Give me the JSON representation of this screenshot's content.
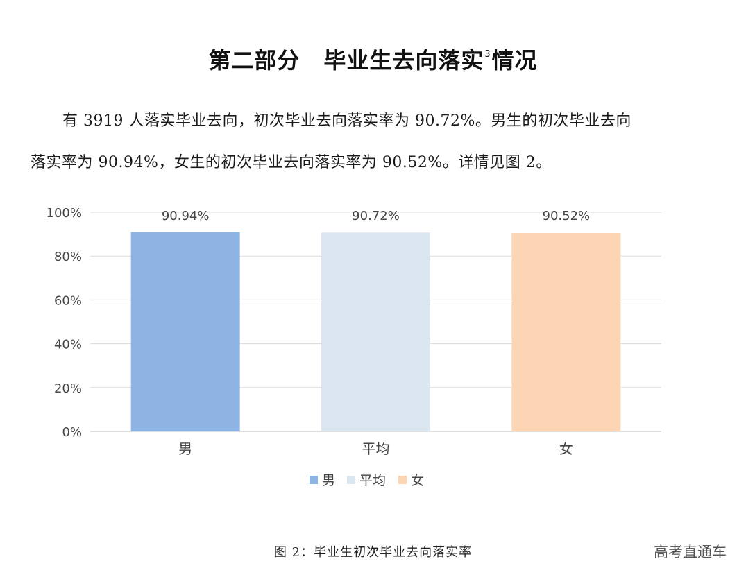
{
  "heading": {
    "part": "第二部分",
    "title": "毕业生去向落实",
    "footnote_mark": "3",
    "suffix": "情况"
  },
  "paragraph": {
    "line1": "有 3919 人落实毕业去向，初次毕业去向落实率为 90.72%。男生的初次毕业去向",
    "line2": "落实率为 90.94%，女生的初次毕业去向落实率为 90.52%。详情见图 2。"
  },
  "chart_data": {
    "type": "bar",
    "categories": [
      "男",
      "平均",
      "女"
    ],
    "values": [
      90.94,
      90.72,
      90.52
    ],
    "data_labels": [
      "90.94%",
      "90.72%",
      "90.52%"
    ],
    "colors": [
      "#8db4e3",
      "#dce6f1",
      "#fcd5b4"
    ],
    "ylim": [
      0,
      100
    ],
    "yticks": [
      0,
      20,
      40,
      60,
      80,
      100
    ],
    "ytick_labels": [
      "0%",
      "20%",
      "40%",
      "60%",
      "80%",
      "100%"
    ],
    "grid": true,
    "legend_position": "bottom",
    "legend": [
      "男",
      "平均",
      "女"
    ]
  },
  "caption": "图 2：毕业生初次毕业去向落实率",
  "watermark": "高考直通车"
}
